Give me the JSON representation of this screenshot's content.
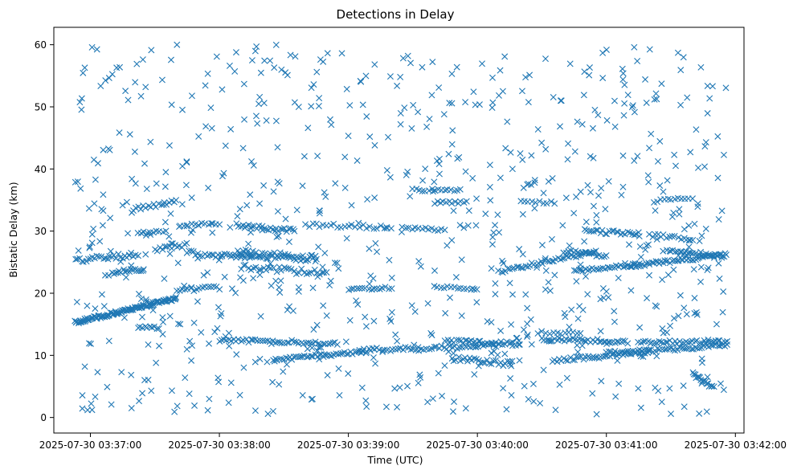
{
  "chart_data": {
    "type": "scatter",
    "title": "Detections in Delay",
    "xlabel": "Time (UTC)",
    "ylabel": "Bistatic Delay (km)",
    "marker": "x",
    "color": "#1f77b4",
    "x_unit": "seconds since 2025-07-30 03:37:00 UTC",
    "xlim": [
      -17,
      304
    ],
    "ylim": [
      -2.5,
      62.8
    ],
    "x_ticks": [
      {
        "value": 0,
        "label": "2025-07-30 03:37:00"
      },
      {
        "value": 60,
        "label": "2025-07-30 03:38:00"
      },
      {
        "value": 120,
        "label": "2025-07-30 03:39:00"
      },
      {
        "value": 180,
        "label": "2025-07-30 03:40:00"
      },
      {
        "value": 240,
        "label": "2025-07-30 03:41:00"
      },
      {
        "value": 300,
        "label": "2025-07-30 03:42:00"
      }
    ],
    "y_ticks": [
      {
        "value": 0,
        "label": "0"
      },
      {
        "value": 10,
        "label": "10"
      },
      {
        "value": 20,
        "label": "20"
      },
      {
        "value": 30,
        "label": "30"
      },
      {
        "value": 40,
        "label": "40"
      },
      {
        "value": 50,
        "label": "50"
      },
      {
        "value": 60,
        "label": "60"
      }
    ],
    "time_range_s": [
      -7,
      297
    ],
    "tracks": [
      {
        "x0": -7,
        "x1": 40,
        "y0": 15.3,
        "y1": 19.2,
        "n": 110,
        "jitter": 0.25
      },
      {
        "x0": -7,
        "x1": 22,
        "y0": 25.3,
        "y1": 26.2,
        "n": 30,
        "jitter": 0.4
      },
      {
        "x0": 10,
        "x1": 25,
        "y0": 23.3,
        "y1": 23.9,
        "n": 18,
        "jitter": 0.3
      },
      {
        "x0": 20,
        "x1": 40,
        "y0": 33.5,
        "y1": 34.8,
        "n": 18,
        "jitter": 0.3
      },
      {
        "x0": 22,
        "x1": 35,
        "y0": 29.8,
        "y1": 30.0,
        "n": 10,
        "jitter": 0.2
      },
      {
        "x0": 22,
        "x1": 32,
        "y0": 14.6,
        "y1": 14.4,
        "n": 10,
        "jitter": 0.2
      },
      {
        "x0": 30,
        "x1": 45,
        "y0": 27.0,
        "y1": 27.8,
        "n": 14,
        "jitter": 0.3
      },
      {
        "x0": 40,
        "x1": 60,
        "y0": 20.5,
        "y1": 20.9,
        "n": 16,
        "jitter": 0.3
      },
      {
        "x0": 42,
        "x1": 60,
        "y0": 31.0,
        "y1": 31.2,
        "n": 12,
        "jitter": 0.2
      },
      {
        "x0": 45,
        "x1": 75,
        "y0": 26.5,
        "y1": 25.8,
        "n": 30,
        "jitter": 0.4
      },
      {
        "x0": 68,
        "x1": 95,
        "y0": 31.0,
        "y1": 30.0,
        "n": 30,
        "jitter": 0.35
      },
      {
        "x0": 68,
        "x1": 105,
        "y0": 26.5,
        "y1": 25.6,
        "n": 60,
        "jitter": 0.6
      },
      {
        "x0": 70,
        "x1": 110,
        "y0": 24.2,
        "y1": 23.2,
        "n": 35,
        "jitter": 0.5
      },
      {
        "x0": 60,
        "x1": 115,
        "y0": 12.4,
        "y1": 12.0,
        "n": 50,
        "jitter": 0.3
      },
      {
        "x0": 85,
        "x1": 128,
        "y0": 9.3,
        "y1": 10.6,
        "n": 45,
        "jitter": 0.25
      },
      {
        "x0": 100,
        "x1": 140,
        "y0": 31.0,
        "y1": 30.6,
        "n": 25,
        "jitter": 0.3
      },
      {
        "x0": 120,
        "x1": 140,
        "y0": 20.5,
        "y1": 20.9,
        "n": 16,
        "jitter": 0.2
      },
      {
        "x0": 125,
        "x1": 190,
        "y0": 10.8,
        "y1": 11.6,
        "n": 55,
        "jitter": 0.3
      },
      {
        "x0": 145,
        "x1": 165,
        "y0": 30.6,
        "y1": 30.1,
        "n": 14,
        "jitter": 0.2
      },
      {
        "x0": 150,
        "x1": 172,
        "y0": 36.6,
        "y1": 36.6,
        "n": 16,
        "jitter": 0.2
      },
      {
        "x0": 160,
        "x1": 175,
        "y0": 34.6,
        "y1": 34.6,
        "n": 12,
        "jitter": 0.2
      },
      {
        "x0": 160,
        "x1": 180,
        "y0": 21.1,
        "y1": 20.6,
        "n": 14,
        "jitter": 0.2
      },
      {
        "x0": 165,
        "x1": 200,
        "y0": 12.3,
        "y1": 11.8,
        "n": 35,
        "jitter": 0.3
      },
      {
        "x0": 168,
        "x1": 196,
        "y0": 9.5,
        "y1": 8.6,
        "n": 28,
        "jitter": 0.4
      },
      {
        "x0": 190,
        "x1": 235,
        "y0": 23.5,
        "y1": 26.7,
        "n": 45,
        "jitter": 0.3
      },
      {
        "x0": 200,
        "x1": 216,
        "y0": 34.8,
        "y1": 34.6,
        "n": 10,
        "jitter": 0.2
      },
      {
        "x0": 208,
        "x1": 228,
        "y0": 13.7,
        "y1": 13.5,
        "n": 12,
        "jitter": 0.2
      },
      {
        "x0": 210,
        "x1": 250,
        "y0": 12.6,
        "y1": 12.2,
        "n": 40,
        "jitter": 0.3
      },
      {
        "x0": 215,
        "x1": 260,
        "y0": 9.2,
        "y1": 10.5,
        "n": 45,
        "jitter": 0.3
      },
      {
        "x0": 225,
        "x1": 255,
        "y0": 23.6,
        "y1": 24.5,
        "n": 30,
        "jitter": 0.25
      },
      {
        "x0": 220,
        "x1": 240,
        "y0": 26.8,
        "y1": 26.0,
        "n": 18,
        "jitter": 0.3
      },
      {
        "x0": 230,
        "x1": 255,
        "y0": 30.0,
        "y1": 29.6,
        "n": 25,
        "jitter": 0.3
      },
      {
        "x0": 240,
        "x1": 296,
        "y0": 10.3,
        "y1": 11.6,
        "n": 55,
        "jitter": 0.3
      },
      {
        "x0": 250,
        "x1": 296,
        "y0": 24.4,
        "y1": 26.2,
        "n": 55,
        "jitter": 0.3
      },
      {
        "x0": 255,
        "x1": 296,
        "y0": 12.0,
        "y1": 12.3,
        "n": 40,
        "jitter": 0.3
      },
      {
        "x0": 260,
        "x1": 280,
        "y0": 29.4,
        "y1": 28.6,
        "n": 16,
        "jitter": 0.3
      },
      {
        "x0": 262,
        "x1": 280,
        "y0": 34.8,
        "y1": 35.3,
        "n": 12,
        "jitter": 0.2
      },
      {
        "x0": 268,
        "x1": 280,
        "y0": 26.8,
        "y1": 26.6,
        "n": 10,
        "jitter": 0.2
      },
      {
        "x0": 275,
        "x1": 295,
        "y0": 26.4,
        "y1": 26.0,
        "n": 20,
        "jitter": 0.3
      },
      {
        "x0": 280,
        "x1": 290,
        "y0": 7.0,
        "y1": 4.8,
        "n": 16,
        "jitter": 0.3
      }
    ],
    "noise": {
      "count": 780,
      "y_range": [
        0.5,
        60
      ],
      "seed": 20250730
    }
  }
}
